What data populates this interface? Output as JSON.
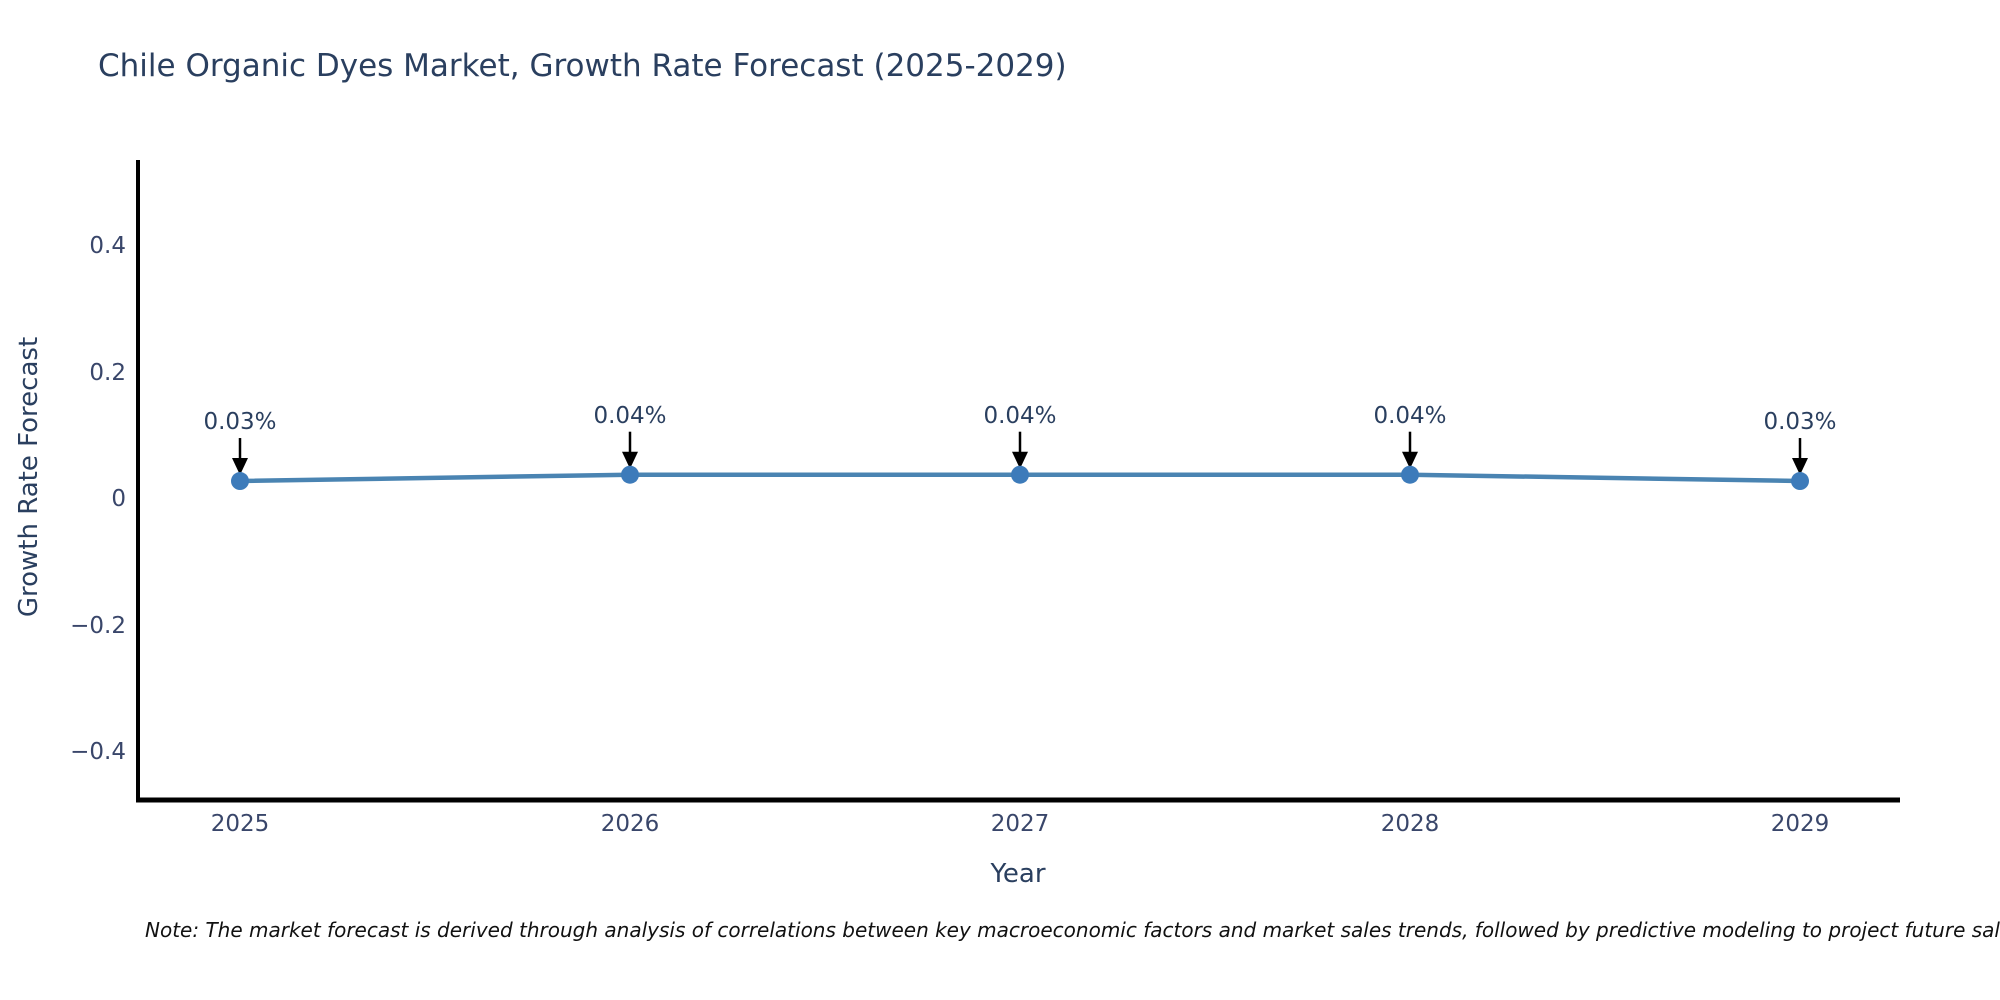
{
  "title": "Chile Organic Dyes Market, Growth Rate Forecast (2025-2029)",
  "note": "Note: The market forecast is derived through analysis of correlations between key macroeconomic factors and market sales trends, followed by predictive modeling to project future sales.",
  "colors": {
    "background": "#ffffff",
    "title_text": "#2a3f5f",
    "tick_text": "#39466a",
    "axis_title_text": "#2a3f5f",
    "axis_line": "#000000",
    "line": "#4a84b2",
    "marker": "#3d7bba",
    "annotation_arrow": "#000000",
    "note_text": "#111111"
  },
  "chart_data": {
    "type": "line",
    "title": "Chile Organic Dyes Market, Growth Rate Forecast (2025-2029)",
    "xlabel": "Year",
    "ylabel": "Growth Rate Forecast",
    "x": [
      2025,
      2026,
      2027,
      2028,
      2029
    ],
    "y": [
      0.03,
      0.04,
      0.04,
      0.04,
      0.03
    ],
    "point_labels": [
      "0.03%",
      "0.04%",
      "0.04%",
      "0.04%",
      "0.03%"
    ],
    "x_tick_labels": [
      "2025",
      "2026",
      "2027",
      "2028",
      "2029"
    ],
    "y_tick_values": [
      0.4,
      0.2,
      0,
      -0.2,
      -0.4
    ],
    "y_tick_labels": [
      "0.4",
      "0.2",
      "0",
      "−0.2",
      "−0.4"
    ],
    "ylim": [
      -0.47,
      0.53
    ],
    "grid": false,
    "legend_position": "none",
    "annotation_style": "value labels above each point with black down-arrows"
  }
}
